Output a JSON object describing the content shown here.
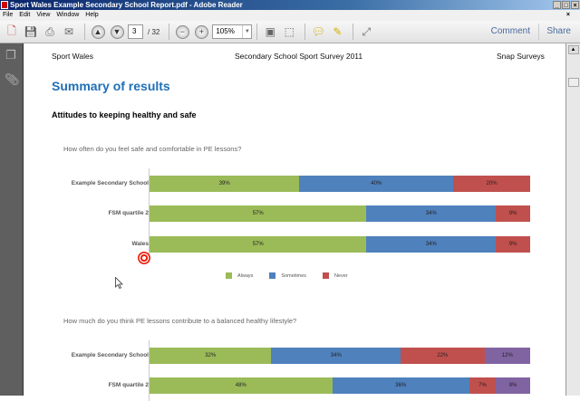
{
  "window": {
    "title": "Sport Wales Example Secondary School Report.pdf - Adobe Reader"
  },
  "menu": [
    "File",
    "Edit",
    "View",
    "Window",
    "Help"
  ],
  "toolbar": {
    "page": "3",
    "total": "/ 32",
    "zoom": "105%",
    "comment": "Comment",
    "share": "Share"
  },
  "doc": {
    "header_left": "Sport Wales",
    "header_center": "Secondary School Sport Survey 2011",
    "header_right": "Snap Surveys",
    "title": "Summary of results",
    "section": "Attitudes to keeping healthy and safe"
  },
  "chart_data": [
    {
      "type": "bar",
      "stacked": true,
      "orientation": "horizontal",
      "title": "How often do you feel safe and comfortable in PE lessons?",
      "categories": [
        "Example Secondary School",
        "FSM quartile 2",
        "Wales"
      ],
      "series": [
        {
          "name": "Always",
          "color": "#9bbb59",
          "values": [
            39,
            57,
            57
          ]
        },
        {
          "name": "Sometimes",
          "color": "#4f81bd",
          "values": [
            40,
            34,
            34
          ]
        },
        {
          "name": "Never",
          "color": "#c0504d",
          "values": [
            20,
            9,
            9
          ]
        }
      ],
      "legend": "bottom"
    },
    {
      "type": "bar",
      "stacked": true,
      "orientation": "horizontal",
      "title": "How much do you think PE lessons contribute to a balanced healthy lifestyle?",
      "categories": [
        "Example Secondary School",
        "FSM quartile 2"
      ],
      "series": [
        {
          "values": [
            32,
            48
          ],
          "color": "#9bbb59"
        },
        {
          "values": [
            34,
            36
          ],
          "color": "#4f81bd"
        },
        {
          "values": [
            22,
            7
          ],
          "color": "#c0504d"
        },
        {
          "values": [
            12,
            9
          ],
          "color": "#8064a2"
        }
      ]
    }
  ]
}
